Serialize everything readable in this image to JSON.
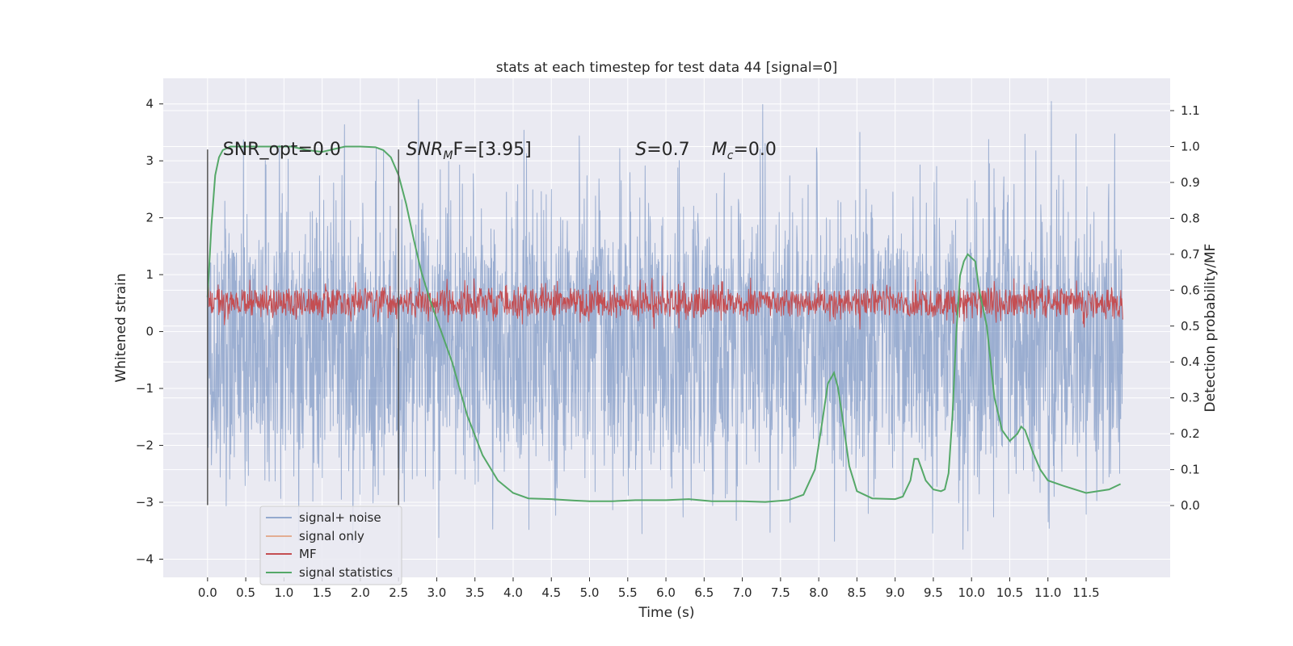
{
  "chart_data": {
    "type": "line",
    "title": "stats at each timestep for test data 44 [signal=0]",
    "xlabel": "Time (s)",
    "ylabel": "Whitened strain",
    "ylabel_right": "Detection probability/MF",
    "xlim": [
      -0.58,
      12.6
    ],
    "ylim": [
      -4.32,
      4.45
    ],
    "ylim_right": [
      -0.2,
      1.19
    ],
    "x_ticks": [
      0.0,
      0.5,
      1.0,
      1.5,
      2.0,
      2.5,
      3.0,
      3.5,
      4.0,
      4.5,
      5.0,
      5.5,
      6.0,
      6.5,
      7.0,
      7.5,
      8.0,
      8.5,
      9.0,
      9.5,
      10.0,
      10.5,
      11.0,
      11.5
    ],
    "x_tick_labels": [
      "0.0",
      "0.5",
      "1.0",
      "1.5",
      "2.0",
      "2.5",
      "3.0",
      "3.5",
      "4.0",
      "4.5",
      "5.0",
      "5.5",
      "6.0",
      "6.5",
      "7.0",
      "7.5",
      "8.0",
      "8.5",
      "9.0",
      "9.5",
      "10.0",
      "10.5",
      "11.0",
      "11.5"
    ],
    "y_ticks": [
      -4,
      -3,
      -2,
      -1,
      0,
      1,
      2,
      3,
      4
    ],
    "y_tick_labels": [
      "−4",
      "−3",
      "−2",
      "−1",
      "0",
      "1",
      "2",
      "3",
      "4"
    ],
    "y_right_ticks": [
      0.0,
      0.1,
      0.2,
      0.3,
      0.4,
      0.5,
      0.6,
      0.7,
      0.8,
      0.9,
      1.0,
      1.1
    ],
    "y_right_tick_labels": [
      "0.0",
      "0.1",
      "0.2",
      "0.3",
      "0.4",
      "0.5",
      "0.6",
      "0.7",
      "0.8",
      "0.9",
      "1.0",
      "1.1"
    ],
    "grid": true,
    "legend_position": "lower-left",
    "series": [
      {
        "name": "signal+ noise",
        "color": "#4c72b0",
        "axis": "left",
        "kind": "noise-band",
        "x_range": [
          0.0,
          11.98
        ],
        "band_low": -1.8,
        "band_high": 1.4,
        "spike_low": -3.9,
        "spike_high": 4.1
      },
      {
        "name": "signal only",
        "color": "#dd8452",
        "axis": "left",
        "kind": "line",
        "x": [],
        "y": []
      },
      {
        "name": "MF",
        "color": "#c44e52",
        "axis": "right",
        "kind": "noise-band",
        "x_range": [
          0.0,
          11.98
        ],
        "band_low": 0.53,
        "band_high": 0.6,
        "spike_low": 0.49,
        "spike_high": 0.64
      },
      {
        "name": "signal statistics",
        "color": "#55a868",
        "axis": "right",
        "kind": "line",
        "x": [
          0.0,
          0.05,
          0.1,
          0.15,
          0.2,
          0.3,
          0.5,
          0.8,
          1.1,
          1.3,
          1.5,
          1.6,
          1.8,
          2.0,
          2.2,
          2.3,
          2.4,
          2.5,
          2.6,
          2.7,
          2.8,
          2.9,
          3.0,
          3.2,
          3.4,
          3.6,
          3.8,
          4.0,
          4.2,
          4.5,
          4.8,
          5.0,
          5.3,
          5.6,
          6.0,
          6.3,
          6.6,
          7.0,
          7.3,
          7.6,
          7.8,
          7.95,
          8.05,
          8.12,
          8.2,
          8.25,
          8.3,
          8.4,
          8.5,
          8.7,
          9.0,
          9.1,
          9.2,
          9.25,
          9.3,
          9.35,
          9.4,
          9.5,
          9.6,
          9.65,
          9.7,
          9.75,
          9.8,
          9.85,
          9.9,
          9.95,
          10.0,
          10.05,
          10.1,
          10.2,
          10.3,
          10.4,
          10.5,
          10.6,
          10.65,
          10.7,
          10.8,
          10.9,
          11.0,
          11.2,
          11.5,
          11.8,
          11.95
        ],
        "y": [
          0.58,
          0.78,
          0.92,
          0.97,
          0.99,
          1.0,
          1.0,
          1.0,
          1.0,
          0.99,
          0.985,
          0.99,
          1.0,
          1.0,
          0.998,
          0.99,
          0.97,
          0.92,
          0.84,
          0.74,
          0.65,
          0.58,
          0.52,
          0.4,
          0.25,
          0.14,
          0.07,
          0.035,
          0.02,
          0.018,
          0.014,
          0.012,
          0.012,
          0.015,
          0.015,
          0.018,
          0.012,
          0.012,
          0.01,
          0.015,
          0.03,
          0.1,
          0.24,
          0.34,
          0.37,
          0.33,
          0.26,
          0.11,
          0.04,
          0.02,
          0.018,
          0.025,
          0.07,
          0.13,
          0.13,
          0.1,
          0.07,
          0.045,
          0.04,
          0.045,
          0.09,
          0.25,
          0.48,
          0.64,
          0.68,
          0.7,
          0.69,
          0.68,
          0.6,
          0.5,
          0.3,
          0.21,
          0.18,
          0.2,
          0.22,
          0.21,
          0.15,
          0.1,
          0.07,
          0.055,
          0.035,
          0.045,
          0.06
        ]
      }
    ],
    "vertical_lines": [
      0.0,
      2.5
    ],
    "annotations": [
      {
        "id": "snr-opt",
        "text": "SNR_opt=0.0",
        "x": 0.2,
        "y": 3.2
      },
      {
        "id": "snr-mf",
        "text": "SNR",
        "sub": "M",
        "rest": "F=[3.95]",
        "x": 2.6,
        "y": 3.2
      },
      {
        "id": "s",
        "text": "S",
        "rest": "=0.7",
        "x": 5.6,
        "y": 3.2
      },
      {
        "id": "mc",
        "text": "M",
        "sub": "c",
        "rest": "=0.0",
        "x": 6.6,
        "y": 3.2
      }
    ]
  }
}
